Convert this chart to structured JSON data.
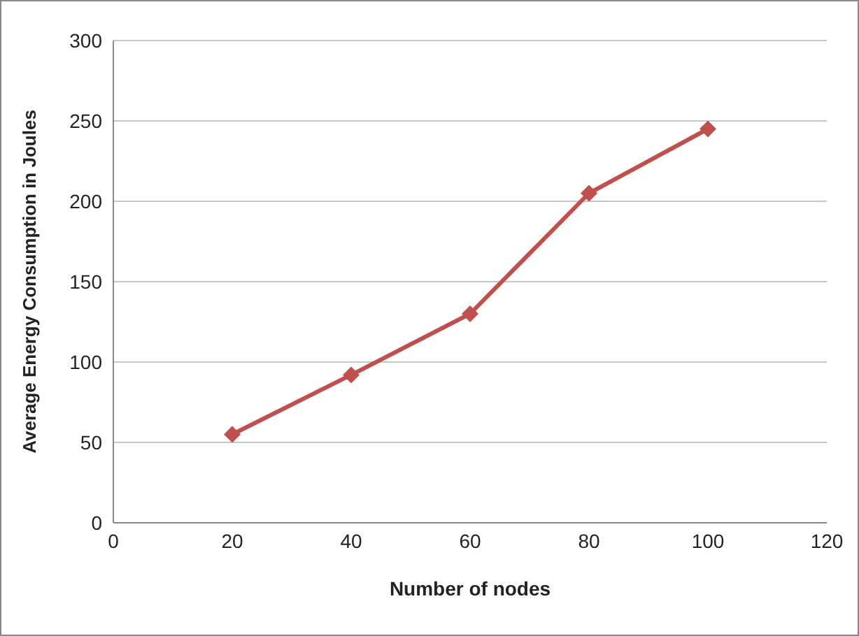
{
  "chart_data": {
    "type": "line",
    "xlabel": "Number of nodes",
    "ylabel": "Average Energy Consumption  in Joules",
    "x": [
      20,
      40,
      60,
      80,
      100
    ],
    "series": [
      {
        "color": "#c0504d",
        "values": [
          55,
          92,
          130,
          205,
          245
        ]
      }
    ],
    "xlim": [
      0,
      120
    ],
    "xticks": [
      0,
      20,
      40,
      60,
      80,
      100,
      120
    ],
    "ylim": [
      0,
      300
    ],
    "yticks": [
      0,
      50,
      100,
      150,
      200,
      250,
      300
    ],
    "grid": "y",
    "marker": "diamond",
    "legend": false
  }
}
